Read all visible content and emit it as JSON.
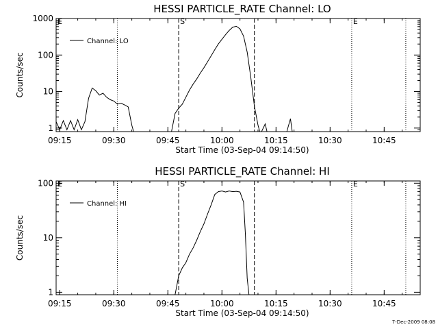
{
  "footer": "7-Dec-2009 08:08",
  "chart_data": [
    {
      "type": "line",
      "title": "HESSI PARTICLE_RATE Channel: LO",
      "xlabel": "Start Time (03-Sep-04 09:14:50)",
      "ylabel": "Counts/sec",
      "yscale": "log",
      "xlim": [
        "09:14",
        "10:55"
      ],
      "ylim": [
        0.8,
        1000
      ],
      "x_ticks": [
        "09:15",
        "09:30",
        "09:45",
        "10:00",
        "10:15",
        "10:30",
        "10:45"
      ],
      "y_ticks": [
        {
          "value": 1,
          "label": "1"
        },
        {
          "value": 10,
          "label": "10"
        },
        {
          "value": 100,
          "label": "100"
        },
        {
          "value": 1000,
          "label": "1000"
        }
      ],
      "legend": {
        "position": "top-left",
        "entries": [
          "Channel: LO"
        ]
      },
      "markers": [
        {
          "time": "09:14",
          "style": "dotted",
          "label": "E"
        },
        {
          "time": "09:31",
          "style": "dotted",
          "label": ""
        },
        {
          "time": "09:48",
          "style": "dashed",
          "label": "S"
        },
        {
          "time": "10:09",
          "style": "dashed",
          "label": ""
        },
        {
          "time": "10:36",
          "style": "dotted",
          "label": "E"
        },
        {
          "time": "10:51",
          "style": "dotted",
          "label": ""
        }
      ],
      "series": [
        {
          "name": "Channel: LO",
          "segments": [
            [
              [
                "09:14",
                1.5
              ],
              [
                "09:15",
                0.9
              ],
              [
                "09:16",
                1.6
              ],
              [
                "09:17",
                0.9
              ],
              [
                "09:18",
                1.6
              ],
              [
                "09:19",
                0.9
              ],
              [
                "09:20",
                1.7
              ],
              [
                "09:21",
                0.9
              ],
              [
                "09:22",
                1.5
              ],
              [
                "09:23",
                6.5
              ],
              [
                "09:24",
                12.5
              ],
              [
                "09:25",
                10.5
              ],
              [
                "09:26",
                8
              ],
              [
                "09:27",
                9
              ],
              [
                "09:28",
                7
              ],
              [
                "09:29",
                6
              ],
              [
                "09:30",
                5.5
              ],
              [
                "09:31",
                4.5
              ],
              [
                "09:32",
                4.8
              ],
              [
                "09:33",
                4.3
              ],
              [
                "09:34",
                3.8
              ],
              [
                "09:35",
                1.2
              ],
              [
                "09:35:30",
                0.8
              ]
            ],
            [
              [
                "09:46",
                0.8
              ],
              [
                "09:47",
                2.5
              ],
              [
                "09:48",
                3.5
              ],
              [
                "09:49",
                4.5
              ],
              [
                "09:50",
                7
              ],
              [
                "09:51",
                11
              ],
              [
                "09:52",
                16
              ],
              [
                "09:53",
                22
              ],
              [
                "09:54",
                32
              ],
              [
                "09:55",
                45
              ],
              [
                "09:56",
                65
              ],
              [
                "09:57",
                95
              ],
              [
                "09:58",
                140
              ],
              [
                "09:59",
                200
              ],
              [
                "10:00",
                270
              ],
              [
                "10:01",
                360
              ],
              [
                "10:02",
                470
              ],
              [
                "10:03",
                580
              ],
              [
                "10:04",
                610
              ],
              [
                "10:05",
                520
              ],
              [
                "10:06",
                330
              ],
              [
                "10:07",
                120
              ],
              [
                "10:08",
                25
              ],
              [
                "10:09",
                4
              ],
              [
                "10:10",
                1.2
              ],
              [
                "10:10:30",
                0.8
              ]
            ],
            [
              [
                "10:11",
                0.8
              ],
              [
                "10:12",
                1.3
              ],
              [
                "10:12:30",
                0.8
              ]
            ],
            [
              [
                "10:18",
                0.8
              ],
              [
                "10:19",
                1.8
              ],
              [
                "10:19:30",
                0.8
              ]
            ]
          ]
        }
      ]
    },
    {
      "type": "line",
      "title": "HESSI PARTICLE_RATE Channel: HI",
      "xlabel": "Start Time (03-Sep-04 09:14:50)",
      "ylabel": "Counts/sec",
      "yscale": "log",
      "xlim": [
        "09:14",
        "10:55"
      ],
      "ylim": [
        0.9,
        110
      ],
      "x_ticks": [
        "09:15",
        "09:30",
        "09:45",
        "10:00",
        "10:15",
        "10:30",
        "10:45"
      ],
      "y_ticks": [
        {
          "value": 1,
          "label": "1"
        },
        {
          "value": 10,
          "label": "10"
        },
        {
          "value": 100,
          "label": "100"
        }
      ],
      "legend": {
        "position": "top-left",
        "entries": [
          "Channel: HI"
        ]
      },
      "markers": [
        {
          "time": "09:14",
          "style": "dotted",
          "label": "E"
        },
        {
          "time": "09:31",
          "style": "dotted",
          "label": ""
        },
        {
          "time": "09:48",
          "style": "dashed",
          "label": "S"
        },
        {
          "time": "10:09",
          "style": "dashed",
          "label": ""
        },
        {
          "time": "10:36",
          "style": "dotted",
          "label": "E"
        },
        {
          "time": "10:51",
          "style": "dotted",
          "label": ""
        }
      ],
      "series": [
        {
          "name": "Channel: HI",
          "segments": [
            [
              [
                "09:47",
                0.9
              ],
              [
                "09:48",
                2
              ],
              [
                "09:49",
                2.8
              ],
              [
                "09:50",
                3.5
              ],
              [
                "09:51",
                5
              ],
              [
                "09:52",
                6.5
              ],
              [
                "09:53",
                9
              ],
              [
                "09:54",
                13
              ],
              [
                "09:55",
                18
              ],
              [
                "09:56",
                27
              ],
              [
                "09:57",
                40
              ],
              [
                "09:58",
                62
              ],
              [
                "09:59",
                70
              ],
              [
                "10:00",
                72
              ],
              [
                "10:01",
                69
              ],
              [
                "10:02",
                72
              ],
              [
                "10:03",
                70
              ],
              [
                "10:04",
                71
              ],
              [
                "10:05",
                69
              ],
              [
                "10:06",
                45
              ],
              [
                "10:06:30",
                12
              ],
              [
                "10:07",
                1.8
              ],
              [
                "10:07:30",
                0.9
              ]
            ]
          ]
        }
      ]
    }
  ]
}
